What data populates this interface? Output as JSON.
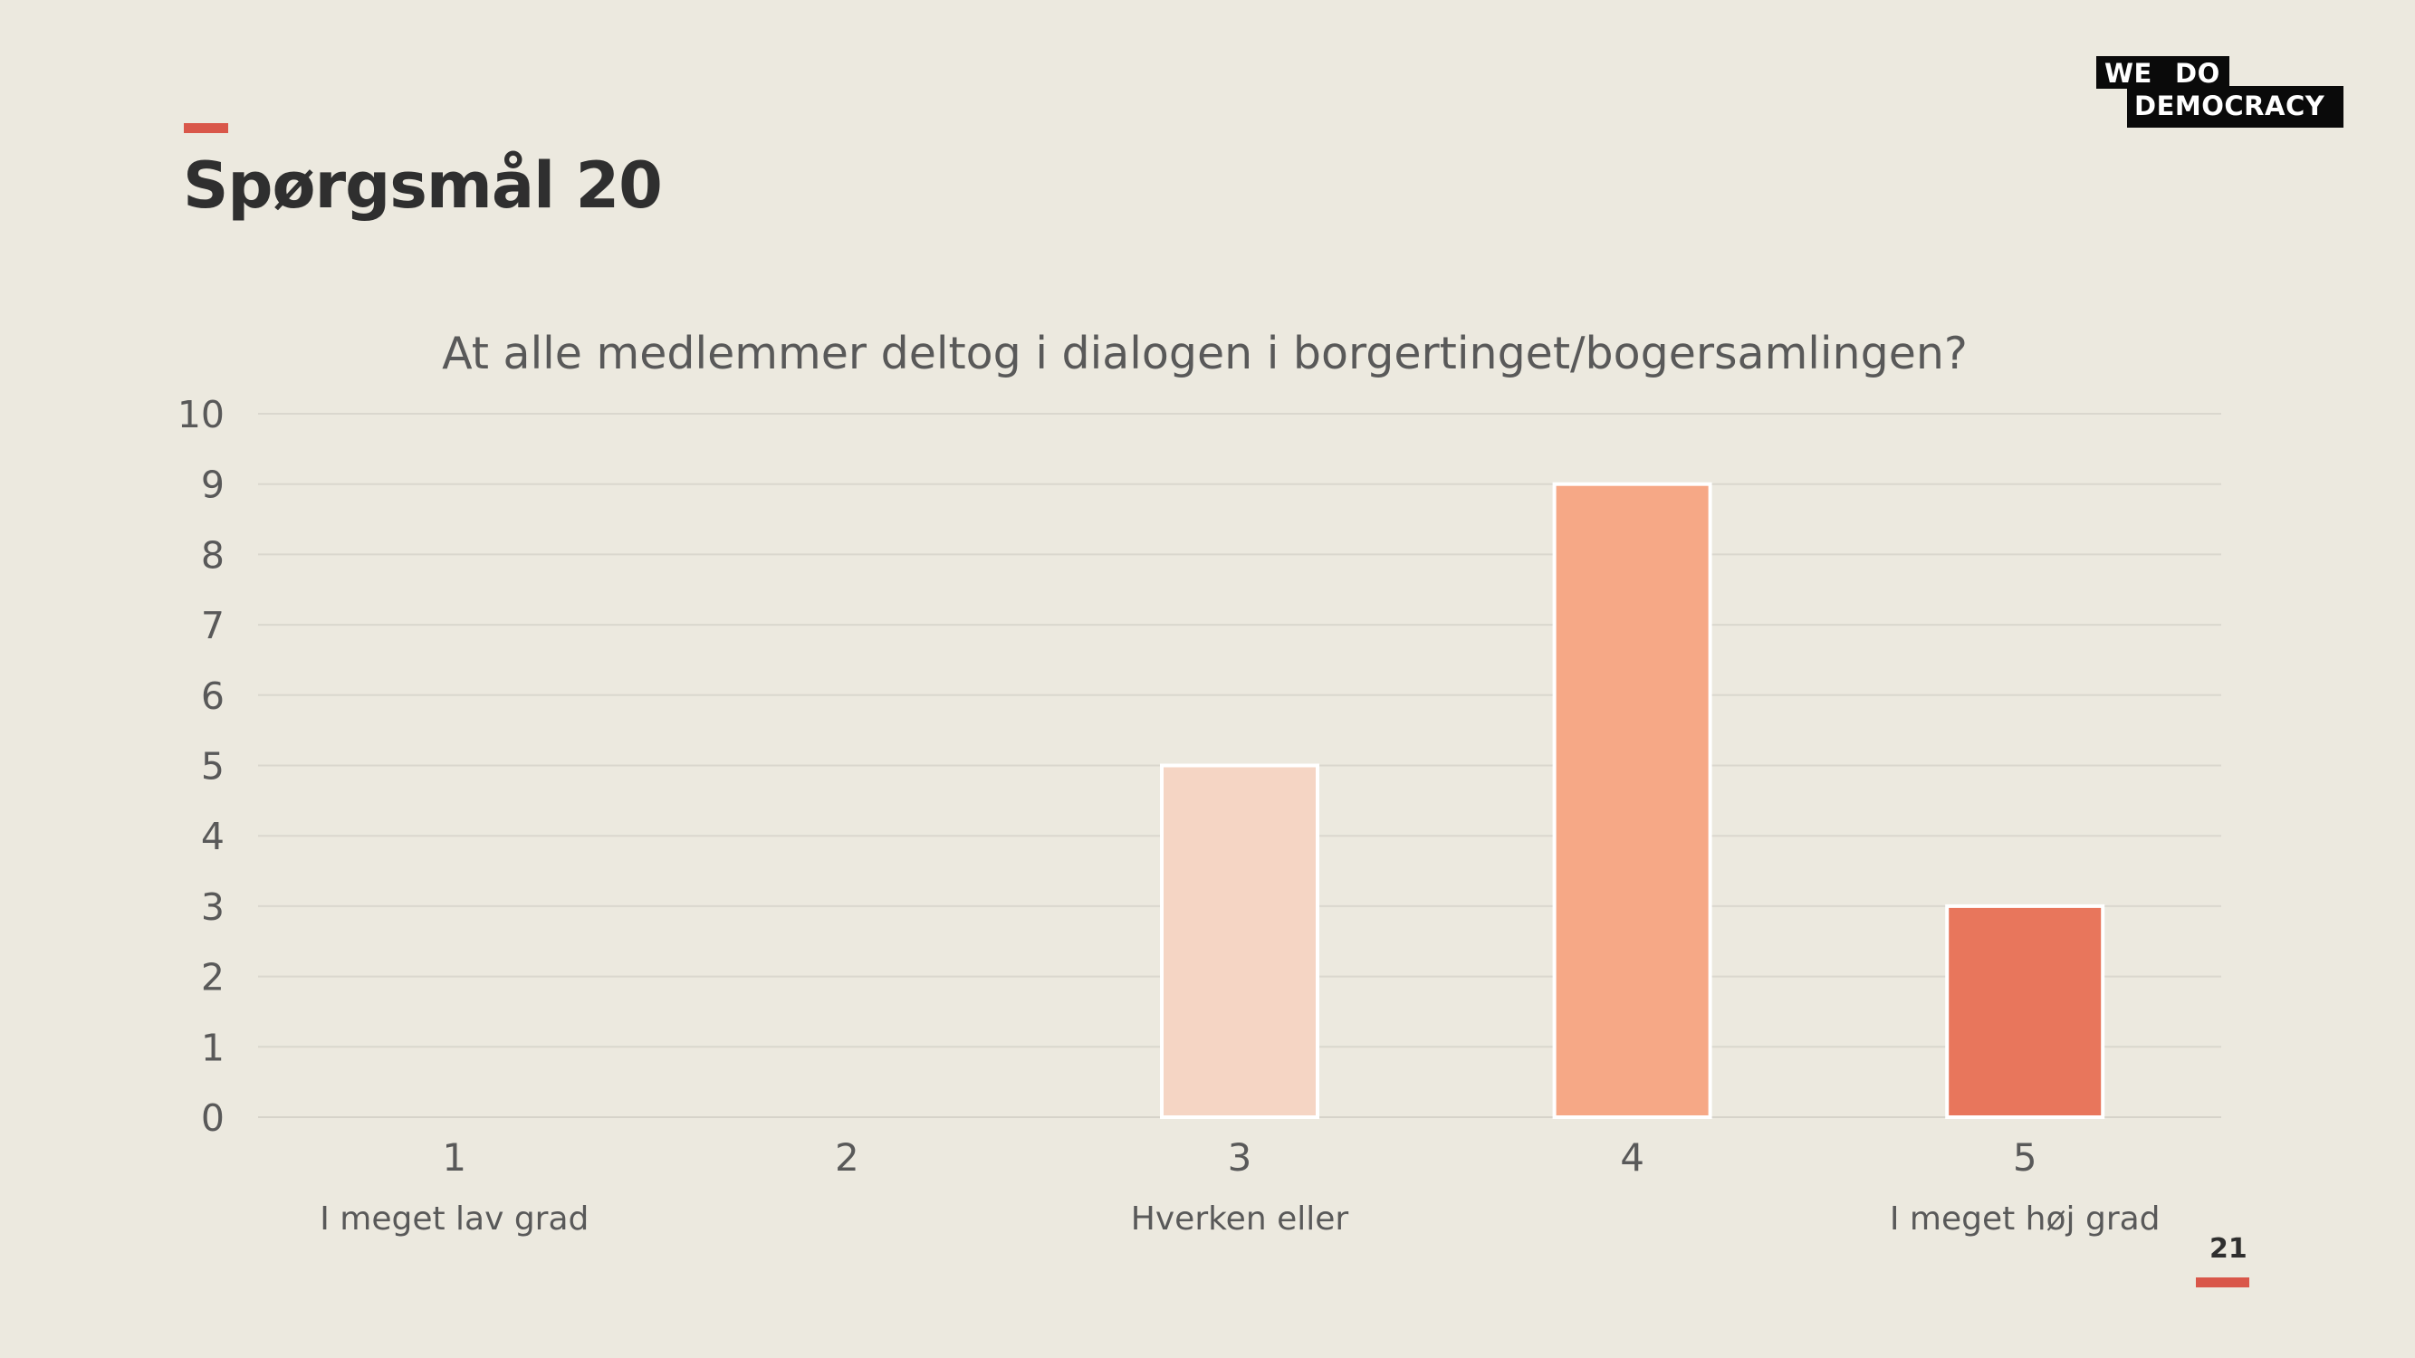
{
  "slide": {
    "heading": "Spørgsmål 20",
    "page_number": "21",
    "accent_color": "#D9574A",
    "background_color": "#ECE9DF"
  },
  "logo": {
    "line1_left": "WE",
    "line1_right": "DO",
    "line2": "DEMOCRACY"
  },
  "chart_data": {
    "type": "bar",
    "title": "At alle medlemmer deltog i dialogen i borgertinget/bogersamlingen?",
    "categories": [
      "1",
      "2",
      "3",
      "4",
      "5"
    ],
    "category_sublabels": [
      "I meget lav grad",
      "",
      "Hverken eller",
      "",
      "I meget høj grad"
    ],
    "values": [
      0,
      0,
      5,
      9,
      3
    ],
    "bar_colors": [
      "#F5D5C4",
      "#F5D5C4",
      "#F5D5C4",
      "#F6A886",
      "#E8765C"
    ],
    "ylim": [
      0,
      10
    ],
    "yticks": [
      0,
      1,
      2,
      3,
      4,
      5,
      6,
      7,
      8,
      9,
      10
    ],
    "grid": true,
    "legend": "none",
    "xlabel": "",
    "ylabel": ""
  }
}
